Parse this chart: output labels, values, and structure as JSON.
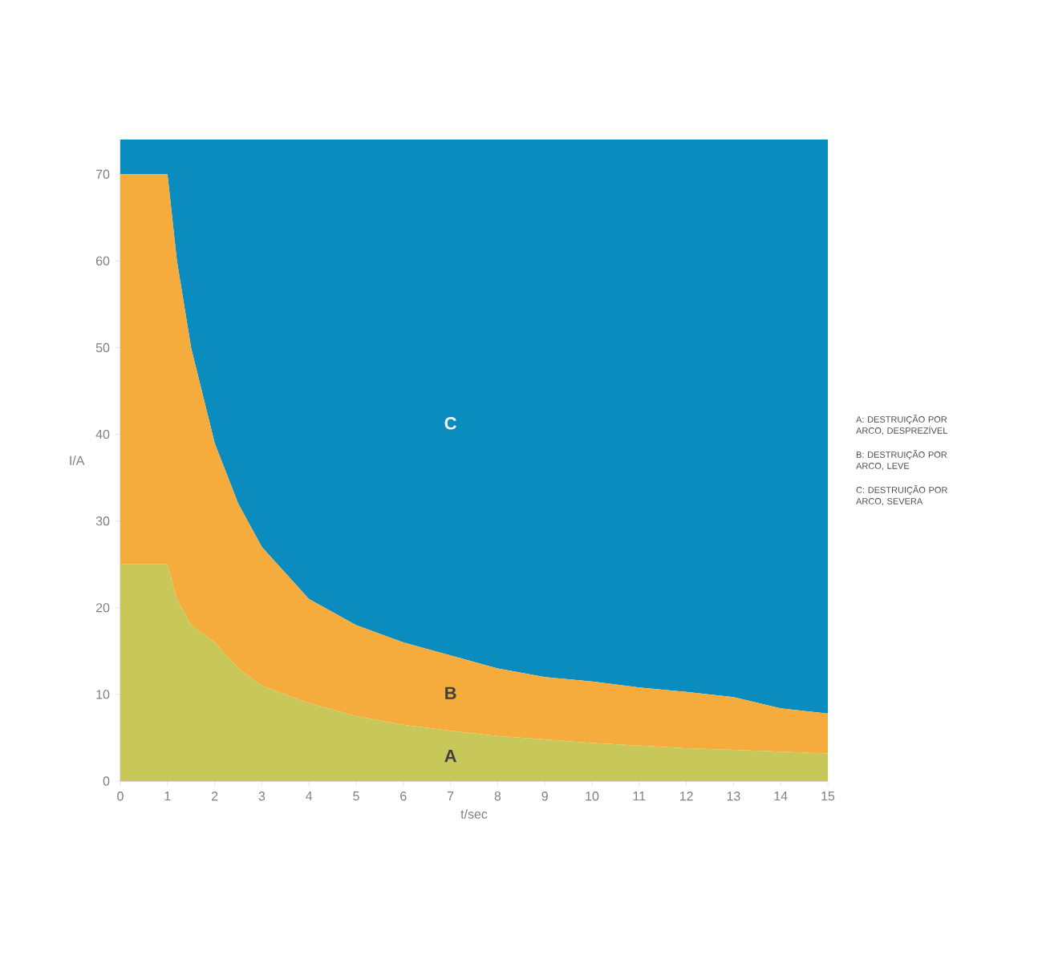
{
  "chart_data": {
    "type": "area",
    "stacked": true,
    "xlabel": "t/sec",
    "ylabel": "I/A",
    "x": [
      0,
      1,
      1.2,
      1.5,
      2,
      2.5,
      3,
      4,
      5,
      6,
      7,
      8,
      9,
      10,
      11,
      12,
      13,
      14,
      15
    ],
    "series": [
      {
        "color": "#c8c85a",
        "values": [
          25,
          25,
          21,
          18,
          16,
          13,
          11,
          9,
          7.5,
          6.5,
          5.8,
          5.2,
          4.8,
          4.4,
          4.1,
          3.8,
          3.6,
          3.4,
          3.2
        ]
      },
      {
        "color": "#f6ac3c",
        "values": [
          45,
          45,
          39,
          32,
          23,
          19,
          16,
          12,
          10.5,
          9.5,
          8.7,
          7.8,
          7.2,
          7.1,
          6.7,
          6.5,
          6.1,
          5,
          4.6
        ]
      },
      {
        "color": "#0a8cbf",
        "values": [
          4,
          4,
          14,
          24,
          35,
          42,
          47,
          53,
          56,
          58,
          59.5,
          61,
          62,
          62.5,
          63.2,
          63.7,
          64.3,
          65.6,
          66.2
        ]
      }
    ],
    "xlim": [
      0,
      15
    ],
    "ylim": [
      0,
      74
    ],
    "xticks": [
      0,
      1,
      2,
      3,
      4,
      5,
      6,
      7,
      8,
      9,
      10,
      11,
      12,
      13,
      14,
      15
    ],
    "yticks": [
      0,
      10,
      20,
      30,
      40,
      50,
      60,
      70
    ],
    "grid": false,
    "annotations": [
      "A",
      "B",
      "C",
      "A: DESTRUIÇÃO POR ARCO, DESPREZÍVEL",
      "B: DESTRUIÇÃO POR ARCO, LEVE",
      "C: DESTRUIÇÃO POR ARCO, SEVERA"
    ]
  }
}
